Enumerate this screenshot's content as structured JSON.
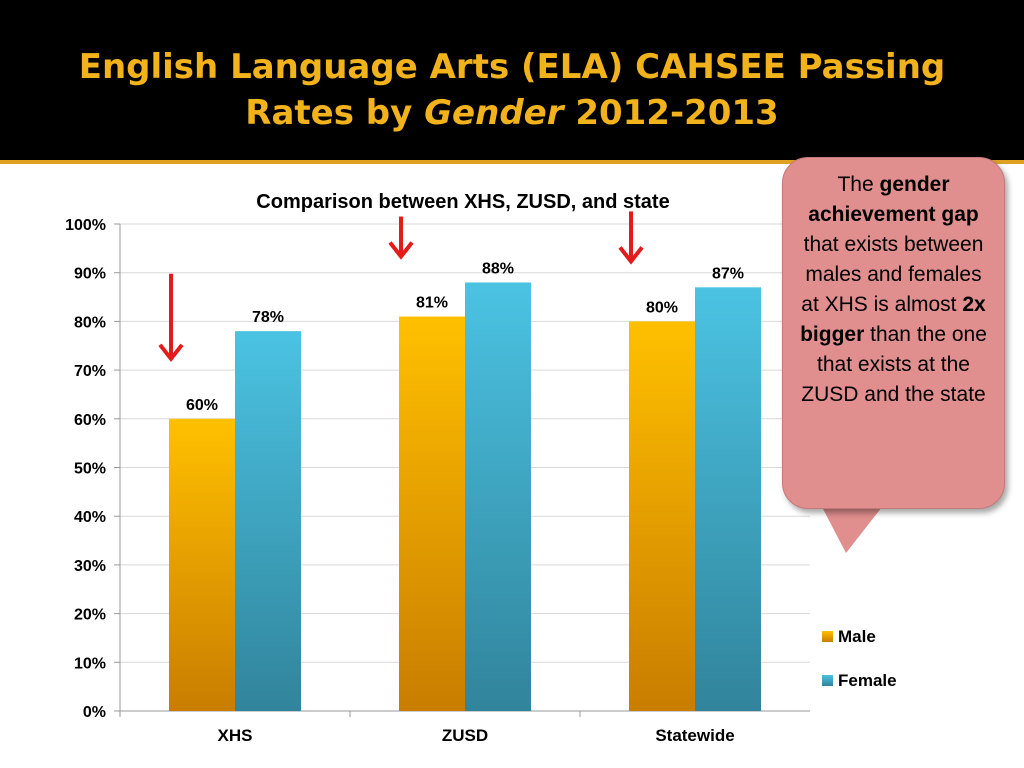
{
  "slide": {
    "title_line1": "English Language Arts (ELA) CAHSEE Passing",
    "title_line2_prefix": "Rates by ",
    "title_line2_em": "Gender",
    "title_line2_suffix": " 2012-2013"
  },
  "callout": {
    "t1": "The ",
    "b1": "gender achievement gap",
    "t2": " that exists between males and females at XHS is almost ",
    "b2": "2x bigger",
    "t3": " than the one that exists at the ZUSD and the state",
    "fill": "#e08e8e"
  },
  "chart_data": {
    "type": "bar",
    "title": "Comparison between XHS, ZUSD, and state",
    "categories": [
      "XHS",
      "ZUSD",
      "Statewide"
    ],
    "series": [
      {
        "name": "Male",
        "values": [
          60,
          81,
          80
        ],
        "labels": [
          "60%",
          "81%",
          "80%"
        ],
        "color_top": "#ffc000",
        "color_bottom": "#c97d00"
      },
      {
        "name": "Female",
        "values": [
          78,
          88,
          87
        ],
        "labels": [
          "78%",
          "88%",
          "87%"
        ],
        "color_top": "#4bc3e3",
        "color_bottom": "#31849b"
      }
    ],
    "ylim": [
      0,
      100
    ],
    "yticks": [
      0,
      10,
      20,
      30,
      40,
      50,
      60,
      70,
      80,
      90,
      100
    ],
    "ytick_labels": [
      "0%",
      "10%",
      "20%",
      "30%",
      "40%",
      "50%",
      "60%",
      "70%",
      "80%",
      "90%",
      "100%"
    ],
    "xlabel": "",
    "ylabel": "",
    "grid": true,
    "legend_position": "right",
    "annotations": "red down-arrows above each Male bar",
    "arrow_color": "#e31b1b"
  }
}
